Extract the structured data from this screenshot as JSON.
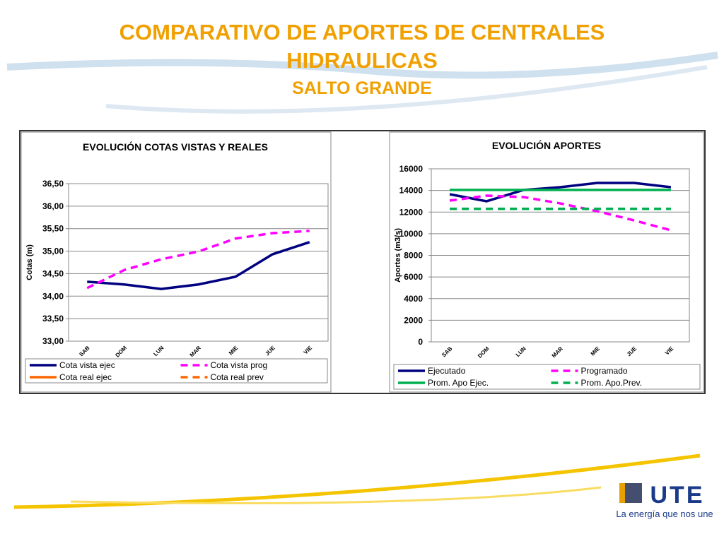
{
  "header": {
    "title_line1": "COMPARATIVO DE APORTES DE CENTRALES",
    "title_line2": "HIDRAULICAS",
    "subtitle": "SALTO GRANDE"
  },
  "footer": {
    "logo": "UTE",
    "slogan": "La energía que nos une"
  },
  "chart_data": [
    {
      "type": "line",
      "title": "EVOLUCIÓN  COTAS VISTAS Y REALES",
      "y_label": "Cotas (m)",
      "categories": [
        "SAB",
        "DOM",
        "LUN",
        "MAR",
        "MIE",
        "JUE",
        "VIE"
      ],
      "ylim": [
        33,
        36.5
      ],
      "yticks": [
        {
          "value": 33,
          "label": "33,00"
        },
        {
          "value": 33.5,
          "label": "33,50"
        },
        {
          "value": 34,
          "label": "34,00"
        },
        {
          "value": 34.5,
          "label": "34,50"
        },
        {
          "value": 35,
          "label": "35,00"
        },
        {
          "value": 35.5,
          "label": "35,50"
        },
        {
          "value": 36,
          "label": "36,00"
        },
        {
          "value": 36.5,
          "label": "36,50"
        }
      ],
      "grid": true,
      "series": [
        {
          "name": "Cota vista ejec",
          "color": "#000080",
          "dashed": false,
          "values": [
            34.32,
            34.26,
            34.16,
            34.26,
            34.43,
            34.93,
            35.2
          ]
        },
        {
          "name": "Cota vista prog",
          "color": "#ff00ff",
          "dashed": true,
          "values": [
            34.18,
            34.58,
            34.82,
            34.99,
            35.28,
            35.4,
            35.45
          ]
        },
        {
          "name": "Cota real ejec",
          "color": "#ff6600",
          "dashed": false,
          "values": [
            null,
            null,
            null,
            null,
            null,
            null,
            null
          ]
        },
        {
          "name": "Cota real prev",
          "color": "#ff6600",
          "dashed": true,
          "values": [
            null,
            null,
            null,
            null,
            null,
            null,
            null
          ]
        }
      ]
    },
    {
      "type": "line",
      "title": "EVOLUCIÓN  APORTES",
      "y_label": "Aportes (m3/s)",
      "categories": [
        "SAB",
        "DOM",
        "LUN",
        "MAR",
        "MIE",
        "JUE",
        "VIE"
      ],
      "ylim": [
        0,
        16000
      ],
      "yticks": [
        0,
        2000,
        4000,
        6000,
        8000,
        10000,
        12000,
        14000,
        16000
      ],
      "grid": true,
      "series": [
        {
          "name": "Ejecutado",
          "color": "#000080",
          "dashed": false,
          "values": [
            13650,
            13000,
            14040,
            14300,
            14690,
            14690,
            14300
          ]
        },
        {
          "name": "Programado",
          "color": "#ff00ff",
          "dashed": true,
          "values": [
            13060,
            13520,
            13390,
            12800,
            12080,
            11230,
            10320
          ]
        },
        {
          "name": "Prom. Apo Ejec.",
          "color": "#00b050",
          "dashed": false,
          "values": [
            14050,
            14050,
            14050,
            14050,
            14050,
            14050,
            14050
          ]
        },
        {
          "name": "Prom. Apo.Prev.",
          "color": "#00b050",
          "dashed": true,
          "values": [
            12300,
            12300,
            12300,
            12300,
            12300,
            12300,
            12300
          ]
        }
      ]
    }
  ]
}
